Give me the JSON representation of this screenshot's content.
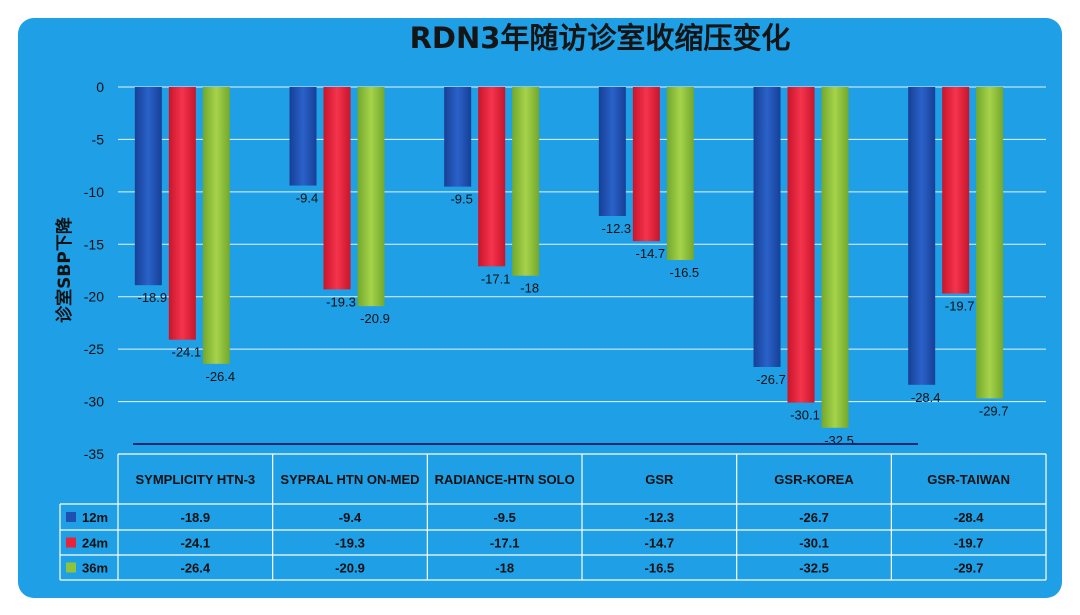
{
  "chart_data": {
    "type": "bar",
    "title": "RDN3年随访诊室收缩压变化",
    "ylabel": "诊室SBP下降",
    "xlabel": "",
    "ylim": [
      -35,
      0
    ],
    "yticks": [
      0,
      -5,
      -10,
      -15,
      -20,
      -25,
      -30,
      -35
    ],
    "categories": [
      "SYMPLICITY HTN-3",
      "SYPRAL HTN ON-MED",
      "RADIANCE-HTN SOLO",
      "GSR",
      "GSR-KOREA",
      "GSR-TAIWAN"
    ],
    "series": [
      {
        "name": "12m",
        "color": "#1f4fb0",
        "values": [
          -18.9,
          -9.4,
          -9.5,
          -12.3,
          -26.7,
          -28.4
        ],
        "labels": [
          "-18.9",
          "-9.4",
          "-9.5",
          "-12.3",
          "-26.7",
          "-28.4"
        ]
      },
      {
        "name": "24m",
        "color": "#e8243a",
        "values": [
          -24.1,
          -19.3,
          -17.1,
          -14.7,
          -30.1,
          -19.7
        ],
        "labels": [
          "-24.1",
          "-19.3",
          "-17.1",
          "-14.7",
          "-30.1",
          "-19.7"
        ]
      },
      {
        "name": "36m",
        "color": "#8fc43a",
        "values": [
          -26.4,
          -20.9,
          -18,
          -16.5,
          -32.5,
          -29.7
        ],
        "labels": [
          "-26.4",
          "-20.9",
          "-18",
          "-16.5",
          "-32.5",
          "-29.7"
        ]
      }
    ],
    "grid": true,
    "data_table": true
  }
}
